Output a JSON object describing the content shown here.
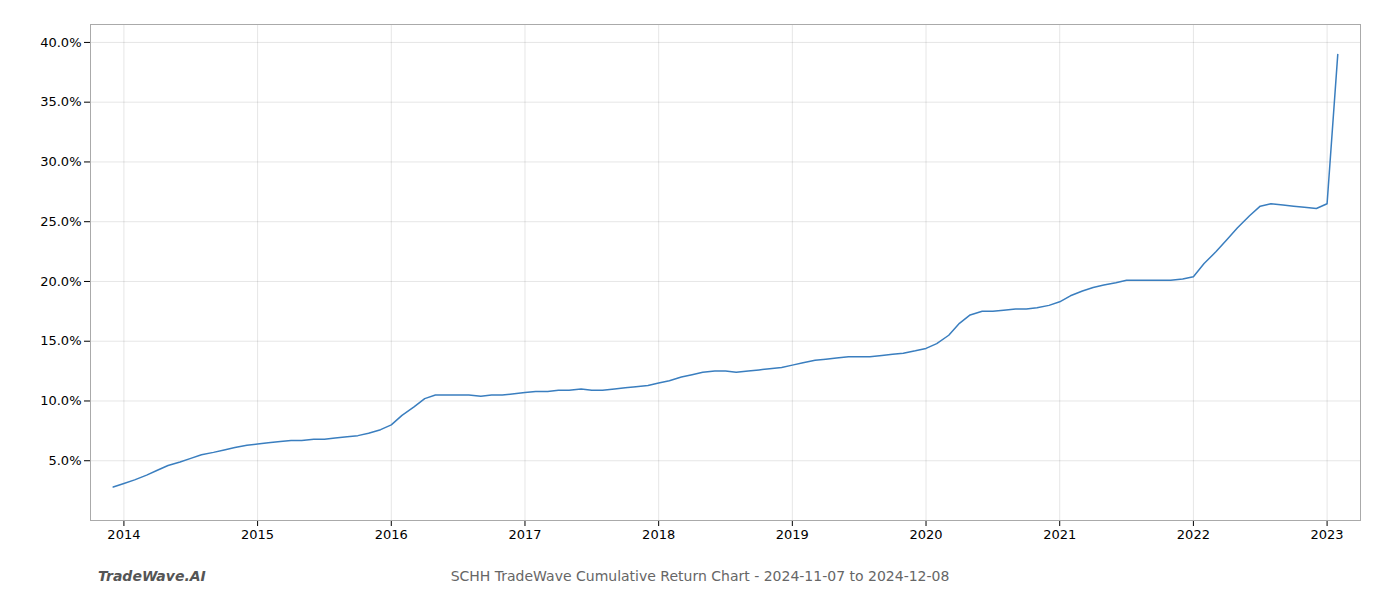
{
  "chart_data": {
    "type": "line",
    "title": "SCHH TradeWave Cumulative Return Chart - 2024-11-07 to 2024-12-08",
    "annotations": [
      "TradeWave.AI"
    ],
    "color": "#3a7ebf",
    "grid": true,
    "x": [
      2013.92,
      2014.0,
      2014.08,
      2014.17,
      2014.25,
      2014.33,
      2014.42,
      2014.5,
      2014.58,
      2014.67,
      2014.75,
      2014.83,
      2014.92,
      2015.0,
      2015.08,
      2015.17,
      2015.25,
      2015.33,
      2015.42,
      2015.5,
      2015.58,
      2015.67,
      2015.75,
      2015.83,
      2015.92,
      2016.0,
      2016.08,
      2016.17,
      2016.25,
      2016.33,
      2016.42,
      2016.5,
      2016.58,
      2016.67,
      2016.75,
      2016.83,
      2016.92,
      2017.0,
      2017.08,
      2017.17,
      2017.25,
      2017.33,
      2017.42,
      2017.5,
      2017.58,
      2017.67,
      2017.75,
      2017.83,
      2017.92,
      2018.0,
      2018.08,
      2018.17,
      2018.25,
      2018.33,
      2018.42,
      2018.5,
      2018.58,
      2018.67,
      2018.75,
      2018.83,
      2018.92,
      2019.0,
      2019.08,
      2019.17,
      2019.25,
      2019.33,
      2019.42,
      2019.5,
      2019.58,
      2019.67,
      2019.75,
      2019.83,
      2019.92,
      2020.0,
      2020.08,
      2020.17,
      2020.25,
      2020.33,
      2020.42,
      2020.5,
      2020.58,
      2020.67,
      2020.75,
      2020.83,
      2020.92,
      2021.0,
      2021.08,
      2021.17,
      2021.25,
      2021.33,
      2021.42,
      2021.5,
      2021.58,
      2021.67,
      2021.75,
      2021.83,
      2021.92,
      2022.0,
      2022.08,
      2022.17,
      2022.25,
      2022.33,
      2022.42,
      2022.5,
      2022.58,
      2022.67,
      2022.75,
      2022.83,
      2022.92,
      2023.0,
      2023.08
    ],
    "values": [
      2.8,
      3.1,
      3.4,
      3.8,
      4.2,
      4.6,
      4.9,
      5.2,
      5.5,
      5.7,
      5.9,
      6.1,
      6.3,
      6.4,
      6.5,
      6.6,
      6.7,
      6.7,
      6.8,
      6.8,
      6.9,
      7.0,
      7.1,
      7.3,
      7.6,
      8.0,
      8.8,
      9.5,
      10.2,
      10.5,
      10.5,
      10.5,
      10.5,
      10.4,
      10.5,
      10.5,
      10.6,
      10.7,
      10.8,
      10.8,
      10.9,
      10.9,
      11.0,
      10.9,
      10.9,
      11.0,
      11.1,
      11.2,
      11.3,
      11.5,
      11.7,
      12.0,
      12.2,
      12.4,
      12.5,
      12.5,
      12.4,
      12.5,
      12.6,
      12.7,
      12.8,
      13.0,
      13.2,
      13.4,
      13.5,
      13.6,
      13.7,
      13.7,
      13.7,
      13.8,
      13.9,
      14.0,
      14.2,
      14.4,
      14.8,
      15.5,
      16.5,
      17.2,
      17.5,
      17.5,
      17.6,
      17.7,
      17.7,
      17.8,
      18.0,
      18.3,
      18.8,
      19.2,
      19.5,
      19.7,
      19.9,
      20.1,
      20.1,
      20.1,
      20.1,
      20.1,
      20.2,
      20.4,
      21.5,
      22.5,
      23.5,
      24.5,
      25.5,
      26.3,
      26.5,
      26.4,
      26.3,
      26.2,
      26.1,
      26.5,
      39.0
    ],
    "xlim": [
      2013.75,
      2023.25
    ],
    "xticks": [
      2014,
      2015,
      2016,
      2017,
      2018,
      2019,
      2020,
      2021,
      2022,
      2023
    ],
    "ylim": [
      0,
      41.5
    ],
    "yticks": [
      {
        "value": 5.0,
        "label": "5.0%"
      },
      {
        "value": 10.0,
        "label": "10.0%"
      },
      {
        "value": 15.0,
        "label": "15.0%"
      },
      {
        "value": 20.0,
        "label": "20.0%"
      },
      {
        "value": 25.0,
        "label": "25.0%"
      },
      {
        "value": 30.0,
        "label": "30.0%"
      },
      {
        "value": 35.0,
        "label": "35.0%"
      },
      {
        "value": 40.0,
        "label": "40.0%"
      }
    ]
  }
}
